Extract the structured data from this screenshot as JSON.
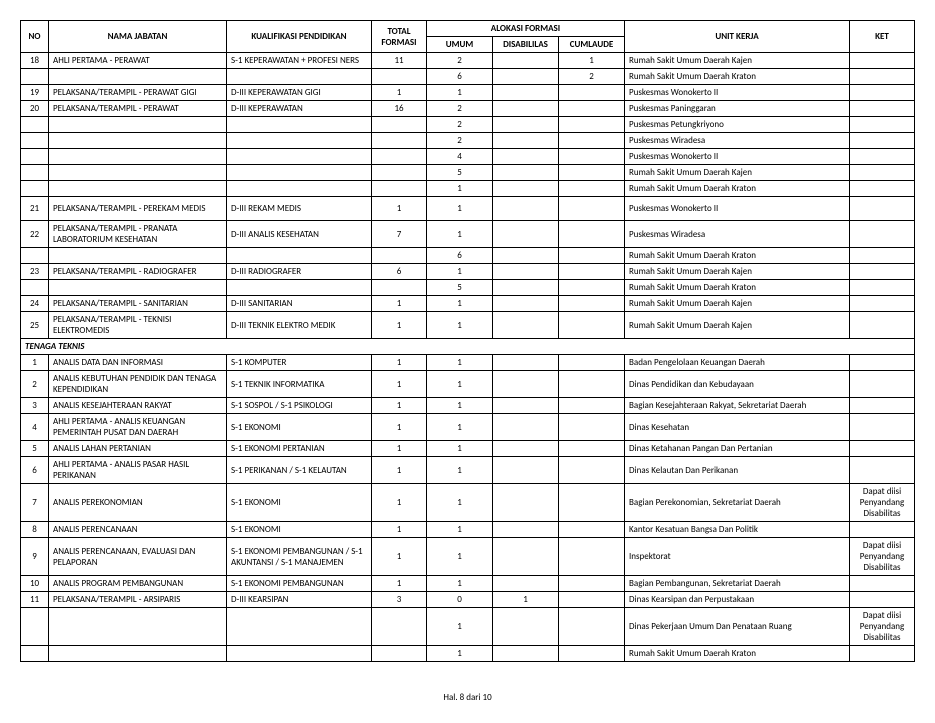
{
  "headers": {
    "no": "NO",
    "nama": "NAMA JABATAN",
    "kualifikasi": "KUALIFIKASI PENDIDIKAN",
    "total": "TOTAL FORMASI",
    "alokasi": "ALOKASI FORMASI",
    "umum": "UMUM",
    "disabilitas": "DISABILILAS",
    "cumlaude": "CUMLAUDE",
    "unit": "UNIT KERJA",
    "ket": "KET"
  },
  "section_label": "TENAGA TEKNIS",
  "footer": "Hal. 8 dari 10",
  "rows": [
    {
      "no": "18",
      "nama": "AHLI PERTAMA - PERAWAT",
      "kual": "S-1 KEPERAWATAN + PROFESI NERS",
      "total": "11",
      "umum": "2",
      "disab": "",
      "cum": "1",
      "unit": "Rumah Sakit Umum Daerah Kajen",
      "ket": ""
    },
    {
      "no": "",
      "nama": "",
      "kual": "",
      "total": "",
      "umum": "6",
      "disab": "",
      "cum": "2",
      "unit": "Rumah Sakit Umum Daerah Kraton",
      "ket": ""
    },
    {
      "no": "19",
      "nama": "PELAKSANA/TERAMPIL - PERAWAT GIGI",
      "kual": "D-III KEPERAWATAN GIGI",
      "total": "1",
      "umum": "1",
      "disab": "",
      "cum": "",
      "unit": "Puskesmas Wonokerto II",
      "ket": ""
    },
    {
      "no": "20",
      "nama": "PELAKSANA/TERAMPIL - PERAWAT",
      "kual": "D-III KEPERAWATAN",
      "total": "16",
      "umum": "2",
      "disab": "",
      "cum": "",
      "unit": "Puskesmas Paninggaran",
      "ket": ""
    },
    {
      "no": "",
      "nama": "",
      "kual": "",
      "total": "",
      "umum": "2",
      "disab": "",
      "cum": "",
      "unit": "Puskesmas Petungkriyono",
      "ket": ""
    },
    {
      "no": "",
      "nama": "",
      "kual": "",
      "total": "",
      "umum": "2",
      "disab": "",
      "cum": "",
      "unit": "Puskesmas Wiradesa",
      "ket": ""
    },
    {
      "no": "",
      "nama": "",
      "kual": "",
      "total": "",
      "umum": "4",
      "disab": "",
      "cum": "",
      "unit": "Puskesmas Wonokerto II",
      "ket": ""
    },
    {
      "no": "",
      "nama": "",
      "kual": "",
      "total": "",
      "umum": "5",
      "disab": "",
      "cum": "",
      "unit": "Rumah Sakit Umum Daerah Kajen",
      "ket": ""
    },
    {
      "no": "",
      "nama": "",
      "kual": "",
      "total": "",
      "umum": "1",
      "disab": "",
      "cum": "",
      "unit": "Rumah Sakit Umum Daerah Kraton",
      "ket": ""
    },
    {
      "no": "21",
      "nama": "PELAKSANA/TERAMPIL - PEREKAM MEDIS",
      "kual": "D-III REKAM MEDIS",
      "total": "1",
      "umum": "1",
      "disab": "",
      "cum": "",
      "unit": "Puskesmas Wonokerto II",
      "ket": "",
      "tall": true
    },
    {
      "no": "22",
      "nama": "PELAKSANA/TERAMPIL - PRANATA LABORATORIUM KESEHATAN",
      "kual": "D-III ANALIS KESEHATAN",
      "total": "7",
      "umum": "1",
      "disab": "",
      "cum": "",
      "unit": "Puskesmas Wiradesa",
      "ket": "",
      "tall": true
    },
    {
      "no": "",
      "nama": "",
      "kual": "",
      "total": "",
      "umum": "6",
      "disab": "",
      "cum": "",
      "unit": "Rumah Sakit Umum Daerah Kraton",
      "ket": ""
    },
    {
      "no": "23",
      "nama": "PELAKSANA/TERAMPIL - RADIOGRAFER",
      "kual": "D-III RADIOGRAFER",
      "total": "6",
      "umum": "1",
      "disab": "",
      "cum": "",
      "unit": "Rumah Sakit Umum Daerah Kajen",
      "ket": ""
    },
    {
      "no": "",
      "nama": "",
      "kual": "",
      "total": "",
      "umum": "5",
      "disab": "",
      "cum": "",
      "unit": "Rumah Sakit Umum Daerah Kraton",
      "ket": ""
    },
    {
      "no": "24",
      "nama": "PELAKSANA/TERAMPIL - SANITARIAN",
      "kual": "D-III SANITARIAN",
      "total": "1",
      "umum": "1",
      "disab": "",
      "cum": "",
      "unit": "Rumah Sakit Umum Daerah Kajen",
      "ket": ""
    },
    {
      "no": "25",
      "nama": "PELAKSANA/TERAMPIL - TEKNISI ELEKTROMEDIS",
      "kual": "D-III TEKNIK ELEKTRO MEDIK",
      "total": "1",
      "umum": "1",
      "disab": "",
      "cum": "",
      "unit": "Rumah Sakit Umum Daerah Kajen",
      "ket": "",
      "tall": true
    }
  ],
  "rows2": [
    {
      "no": "1",
      "nama": "ANALIS DATA DAN INFORMASI",
      "kual": "S-1 KOMPUTER",
      "total": "1",
      "umum": "1",
      "disab": "",
      "cum": "",
      "unit": "Badan Pengelolaan Keuangan Daerah",
      "ket": ""
    },
    {
      "no": "2",
      "nama": "ANALIS KEBUTUHAN PENDIDIK DAN TENAGA KEPENDIDIKAN",
      "kual": "S-1 TEKNIK INFORMATIKA",
      "total": "1",
      "umum": "1",
      "disab": "",
      "cum": "",
      "unit": "Dinas Pendidikan dan Kebudayaan",
      "ket": "",
      "tall": true
    },
    {
      "no": "3",
      "nama": "ANALIS KESEJAHTERAAN RAKYAT",
      "kual": "S-1 SOSPOL / S-1 PSIKOLOGI",
      "total": "1",
      "umum": "1",
      "disab": "",
      "cum": "",
      "unit": "Bagian Kesejahteraan Rakyat, Sekretariat Daerah",
      "ket": ""
    },
    {
      "no": "4",
      "nama": "AHLI PERTAMA - ANALIS KEUANGAN PEMERINTAH PUSAT DAN DAERAH",
      "kual": "S-1 EKONOMI",
      "total": "1",
      "umum": "1",
      "disab": "",
      "cum": "",
      "unit": "Dinas Kesehatan",
      "ket": "",
      "tall": true
    },
    {
      "no": "5",
      "nama": "ANALIS LAHAN PERTANIAN",
      "kual": "S-1 EKONOMI PERTANIAN",
      "total": "1",
      "umum": "1",
      "disab": "",
      "cum": "",
      "unit": "Dinas Ketahanan Pangan Dan Pertanian",
      "ket": ""
    },
    {
      "no": "6",
      "nama": "AHLI PERTAMA - ANALIS PASAR HASIL PERIKANAN",
      "kual": "S-1 PERIKANAN / S-1 KELAUTAN",
      "total": "1",
      "umum": "1",
      "disab": "",
      "cum": "",
      "unit": "Dinas Kelautan Dan Perikanan",
      "ket": "",
      "tall": true
    },
    {
      "no": "7",
      "nama": "ANALIS PEREKONOMIAN",
      "kual": "S-1 EKONOMI",
      "total": "1",
      "umum": "1",
      "disab": "",
      "cum": "",
      "unit": "Bagian Perekonomian, Sekretariat Daerah",
      "ket": "Dapat diisi Penyandang Disabilitas",
      "xtall": true
    },
    {
      "no": "8",
      "nama": "ANALIS PERENCANAAN",
      "kual": "S-1 EKONOMI",
      "total": "1",
      "umum": "1",
      "disab": "",
      "cum": "",
      "unit": "Kantor Kesatuan Bangsa Dan Politik",
      "ket": ""
    },
    {
      "no": "9",
      "nama": "ANALIS PERENCANAAN, EVALUASI DAN PELAPORAN",
      "kual": "S-1 EKONOMI PEMBANGUNAN / S-1 AKUNTANSI / S-1 MANAJEMEN",
      "total": "1",
      "umum": "1",
      "disab": "",
      "cum": "",
      "unit": "Inspektorat",
      "ket": "Dapat diisi Penyandang Disabilitas",
      "xtall": true
    },
    {
      "no": "10",
      "nama": "ANALIS PROGRAM PEMBANGUNAN",
      "kual": "S-1 EKONOMI PEMBANGUNAN",
      "total": "1",
      "umum": "1",
      "disab": "",
      "cum": "",
      "unit": "Bagian Pembangunan, Sekretariat Daerah",
      "ket": ""
    },
    {
      "no": "11",
      "nama": "PELAKSANA/TERAMPIL - ARSIPARIS",
      "kual": "D-III KEARSIPAN",
      "total": "3",
      "umum": "0",
      "disab": "1",
      "cum": "",
      "unit": "Dinas Kearsipan dan Perpustakaan",
      "ket": ""
    },
    {
      "no": "",
      "nama": "",
      "kual": "",
      "total": "",
      "umum": "1",
      "disab": "",
      "cum": "",
      "unit": "Dinas Pekerjaan Umum Dan Penataan Ruang",
      "ket": "Dapat diisi Penyandang Disabilitas",
      "xtall": true
    },
    {
      "no": "",
      "nama": "",
      "kual": "",
      "total": "",
      "umum": "1",
      "disab": "",
      "cum": "",
      "unit": "Rumah Sakit Umum Daerah Kraton",
      "ket": ""
    }
  ]
}
